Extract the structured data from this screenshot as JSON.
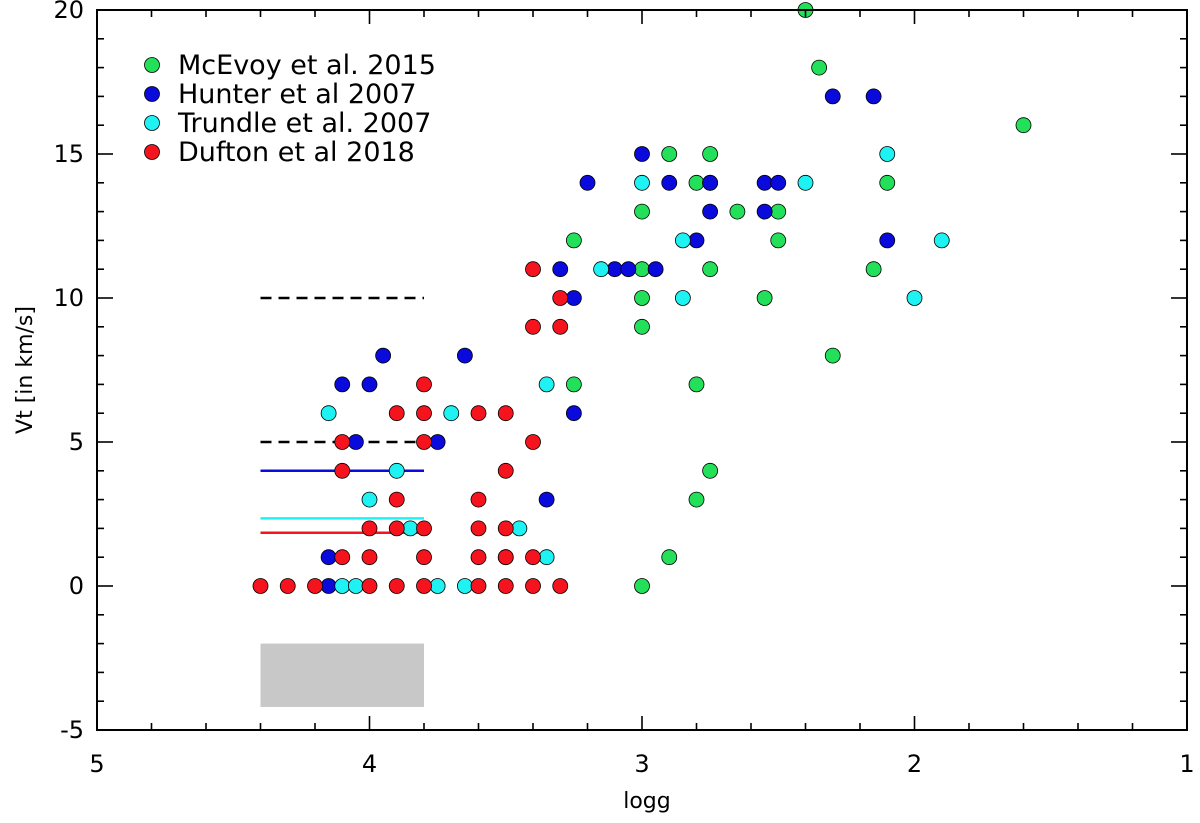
{
  "chart_data": {
    "type": "scatter",
    "title": "",
    "xlabel": "logg",
    "ylabel": "Vt [in km/s]",
    "xlim": [
      5,
      1
    ],
    "ylim": [
      -5,
      20
    ],
    "x_reversed": true,
    "x_ticks": [
      5,
      4,
      3,
      2,
      1
    ],
    "y_ticks": [
      -5,
      0,
      5,
      10,
      15,
      20
    ],
    "x_tick_labels": [
      "5",
      "4",
      "3",
      "2",
      "1"
    ],
    "y_tick_labels": [
      "-5",
      "0",
      "5",
      "10",
      "15",
      "20"
    ],
    "grid": false,
    "legend_position": "top-left",
    "series": [
      {
        "name": "McEvoy et al. 2015",
        "color": "#22e05a",
        "points": [
          [
            2.4,
            20
          ],
          [
            2.35,
            18
          ],
          [
            1.6,
            16
          ],
          [
            2.9,
            15
          ],
          [
            2.75,
            15
          ],
          [
            2.8,
            14
          ],
          [
            2.75,
            14
          ],
          [
            2.1,
            14
          ],
          [
            3.0,
            13
          ],
          [
            2.65,
            13
          ],
          [
            2.5,
            13
          ],
          [
            3.25,
            12
          ],
          [
            2.5,
            12
          ],
          [
            3.0,
            11
          ],
          [
            2.75,
            11
          ],
          [
            2.15,
            11
          ],
          [
            3.0,
            10
          ],
          [
            2.55,
            10
          ],
          [
            3.0,
            9
          ],
          [
            2.3,
            8
          ],
          [
            3.25,
            7
          ],
          [
            2.8,
            7
          ],
          [
            2.75,
            4
          ],
          [
            2.8,
            3
          ],
          [
            2.9,
            1
          ],
          [
            3.0,
            0
          ]
        ]
      },
      {
        "name": "Hunter et al 2007",
        "color": "#0a0adc",
        "points": [
          [
            2.3,
            17
          ],
          [
            2.15,
            17
          ],
          [
            3.0,
            15
          ],
          [
            3.2,
            14
          ],
          [
            2.9,
            14
          ],
          [
            2.75,
            14
          ],
          [
            2.55,
            14
          ],
          [
            2.5,
            14
          ],
          [
            2.75,
            13
          ],
          [
            2.55,
            13
          ],
          [
            2.8,
            12
          ],
          [
            2.1,
            12
          ],
          [
            3.3,
            11
          ],
          [
            3.1,
            11
          ],
          [
            3.05,
            11
          ],
          [
            2.95,
            11
          ],
          [
            3.25,
            10
          ],
          [
            3.95,
            8
          ],
          [
            3.65,
            8
          ],
          [
            4.1,
            7
          ],
          [
            4.0,
            7
          ],
          [
            3.25,
            6
          ],
          [
            4.05,
            5
          ],
          [
            3.75,
            5
          ],
          [
            3.35,
            3
          ],
          [
            4.15,
            1
          ],
          [
            3.5,
            1
          ],
          [
            4.15,
            0
          ]
        ]
      },
      {
        "name": "Trundle et al. 2007",
        "color": "#1ef2f2",
        "points": [
          [
            2.1,
            15
          ],
          [
            3.0,
            14
          ],
          [
            2.4,
            14
          ],
          [
            2.85,
            12
          ],
          [
            1.9,
            12
          ],
          [
            3.15,
            11
          ],
          [
            2.85,
            10
          ],
          [
            2.0,
            10
          ],
          [
            3.35,
            7
          ],
          [
            4.15,
            6
          ],
          [
            3.7,
            6
          ],
          [
            3.9,
            4
          ],
          [
            4.0,
            3
          ],
          [
            3.45,
            2
          ],
          [
            3.85,
            2
          ],
          [
            3.35,
            1
          ],
          [
            4.1,
            0
          ],
          [
            4.05,
            0
          ],
          [
            3.75,
            0
          ],
          [
            3.65,
            0
          ]
        ]
      },
      {
        "name": "Dufton et al 2018",
        "color": "#f5141e",
        "points": [
          [
            3.4,
            11
          ],
          [
            3.3,
            10
          ],
          [
            3.4,
            9
          ],
          [
            3.3,
            9
          ],
          [
            3.8,
            7
          ],
          [
            3.9,
            6
          ],
          [
            3.8,
            6
          ],
          [
            3.6,
            6
          ],
          [
            3.5,
            6
          ],
          [
            4.1,
            5
          ],
          [
            3.8,
            5
          ],
          [
            3.4,
            5
          ],
          [
            4.1,
            4
          ],
          [
            3.5,
            4
          ],
          [
            3.9,
            3
          ],
          [
            3.6,
            3
          ],
          [
            4.0,
            2
          ],
          [
            3.9,
            2
          ],
          [
            3.8,
            2
          ],
          [
            3.6,
            2
          ],
          [
            3.5,
            2
          ],
          [
            4.1,
            1
          ],
          [
            4.0,
            1
          ],
          [
            3.8,
            1
          ],
          [
            3.6,
            1
          ],
          [
            3.5,
            1
          ],
          [
            3.4,
            1
          ],
          [
            4.4,
            0
          ],
          [
            4.3,
            0
          ],
          [
            4.2,
            0
          ],
          [
            4.0,
            0
          ],
          [
            3.9,
            0
          ],
          [
            3.8,
            0
          ],
          [
            3.6,
            0
          ],
          [
            3.5,
            0
          ],
          [
            3.4,
            0
          ],
          [
            3.3,
            0
          ]
        ]
      }
    ],
    "reference_lines": [
      {
        "x": [
          4.4,
          3.8
        ],
        "y": 10,
        "color": "#000000",
        "style": "dashed"
      },
      {
        "x": [
          4.4,
          3.8
        ],
        "y": 5,
        "color": "#000000",
        "style": "dashed"
      },
      {
        "x": [
          4.4,
          3.8
        ],
        "y": 4,
        "color": "#0a0adc",
        "style": "solid"
      },
      {
        "x": [
          4.4,
          3.8
        ],
        "y": 2.35,
        "color": "#1ef2f2",
        "style": "solid"
      },
      {
        "x": [
          4.4,
          3.8
        ],
        "y": 1.85,
        "color": "#f5141e",
        "style": "solid"
      }
    ],
    "shaded_region": {
      "x": [
        4.4,
        3.8
      ],
      "y": [
        -4.2,
        -2
      ],
      "color": "#c8c8c8"
    }
  }
}
